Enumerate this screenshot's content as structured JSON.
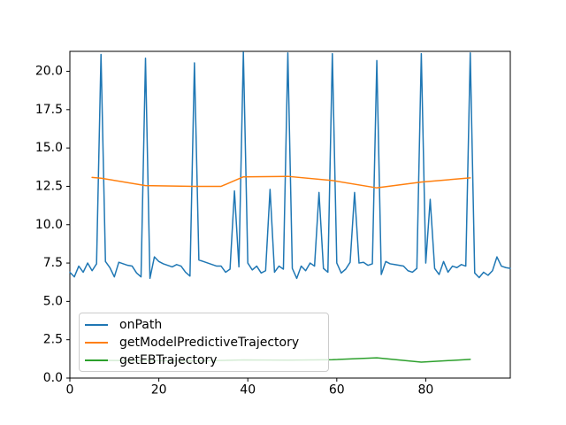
{
  "figure": {
    "background_color": "#ffffff",
    "title": "",
    "window_chrome": "none"
  },
  "chart_data": {
    "type": "line",
    "title": "",
    "xlabel": "",
    "ylabel": "",
    "grid": false,
    "xlim": [
      0,
      99
    ],
    "ylim": [
      0,
      21.3
    ],
    "xticks": {
      "values": [
        0,
        20,
        40,
        60,
        80
      ],
      "labels": [
        "0",
        "20",
        "40",
        "60",
        "80"
      ]
    },
    "yticks": {
      "values": [
        0,
        2.5,
        5,
        7.5,
        10,
        12.5,
        15,
        17.5,
        20
      ],
      "labels": [
        "0.0",
        "2.5",
        "5.0",
        "7.5",
        "10.0",
        "12.5",
        "15.0",
        "17.5",
        "20.0"
      ]
    },
    "legend": {
      "position": "lower left",
      "frame_alpha": 0.8,
      "border_color": "#cccccc"
    },
    "series": [
      {
        "name": "onPath",
        "color": "#1f77b4",
        "x_is_index": true,
        "x": null,
        "y": [
          6.9,
          6.6,
          7.3,
          6.9,
          7.5,
          7.0,
          7.45,
          21.1,
          7.6,
          7.2,
          6.6,
          7.55,
          7.45,
          7.35,
          7.3,
          6.85,
          6.6,
          20.85,
          6.5,
          7.9,
          7.6,
          7.45,
          7.35,
          7.25,
          7.4,
          7.3,
          6.9,
          6.65,
          20.55,
          7.7,
          7.6,
          7.5,
          7.4,
          7.3,
          7.3,
          6.9,
          7.1,
          12.2,
          7.25,
          21.25,
          7.5,
          7.05,
          7.3,
          6.85,
          7.0,
          12.3,
          6.9,
          7.3,
          7.1,
          21.2,
          7.15,
          6.5,
          7.3,
          7.0,
          7.5,
          7.3,
          12.1,
          7.15,
          6.9,
          21.15,
          7.5,
          6.85,
          7.1,
          7.55,
          12.1,
          7.5,
          7.55,
          7.35,
          7.45,
          20.7,
          6.75,
          7.6,
          7.45,
          7.4,
          7.35,
          7.3,
          7.0,
          6.9,
          7.15,
          21.15,
          7.5,
          11.65,
          7.15,
          6.75,
          7.6,
          6.9,
          7.3,
          7.2,
          7.4,
          7.3,
          21.2,
          6.85,
          6.55,
          6.9,
          6.7,
          7.0,
          7.9,
          7.3,
          7.2,
          7.15
        ]
      },
      {
        "name": "getModelPredictiveTrajectory",
        "color": "#ff7f0e",
        "x_is_index": false,
        "x": [
          5,
          7,
          17,
          28,
          34,
          39,
          49,
          59,
          69,
          79,
          90
        ],
        "y": [
          13.08,
          13.03,
          12.55,
          12.5,
          12.5,
          13.12,
          13.15,
          12.88,
          12.4,
          12.78,
          13.05
        ]
      },
      {
        "name": "getEBTrajectory",
        "color": "#2ca02c",
        "x_is_index": false,
        "x": [
          5,
          17,
          28,
          39,
          49,
          59,
          69,
          79,
          90
        ],
        "y": [
          1.15,
          1.14,
          1.12,
          1.18,
          1.17,
          1.2,
          1.32,
          1.04,
          1.22
        ]
      }
    ]
  }
}
